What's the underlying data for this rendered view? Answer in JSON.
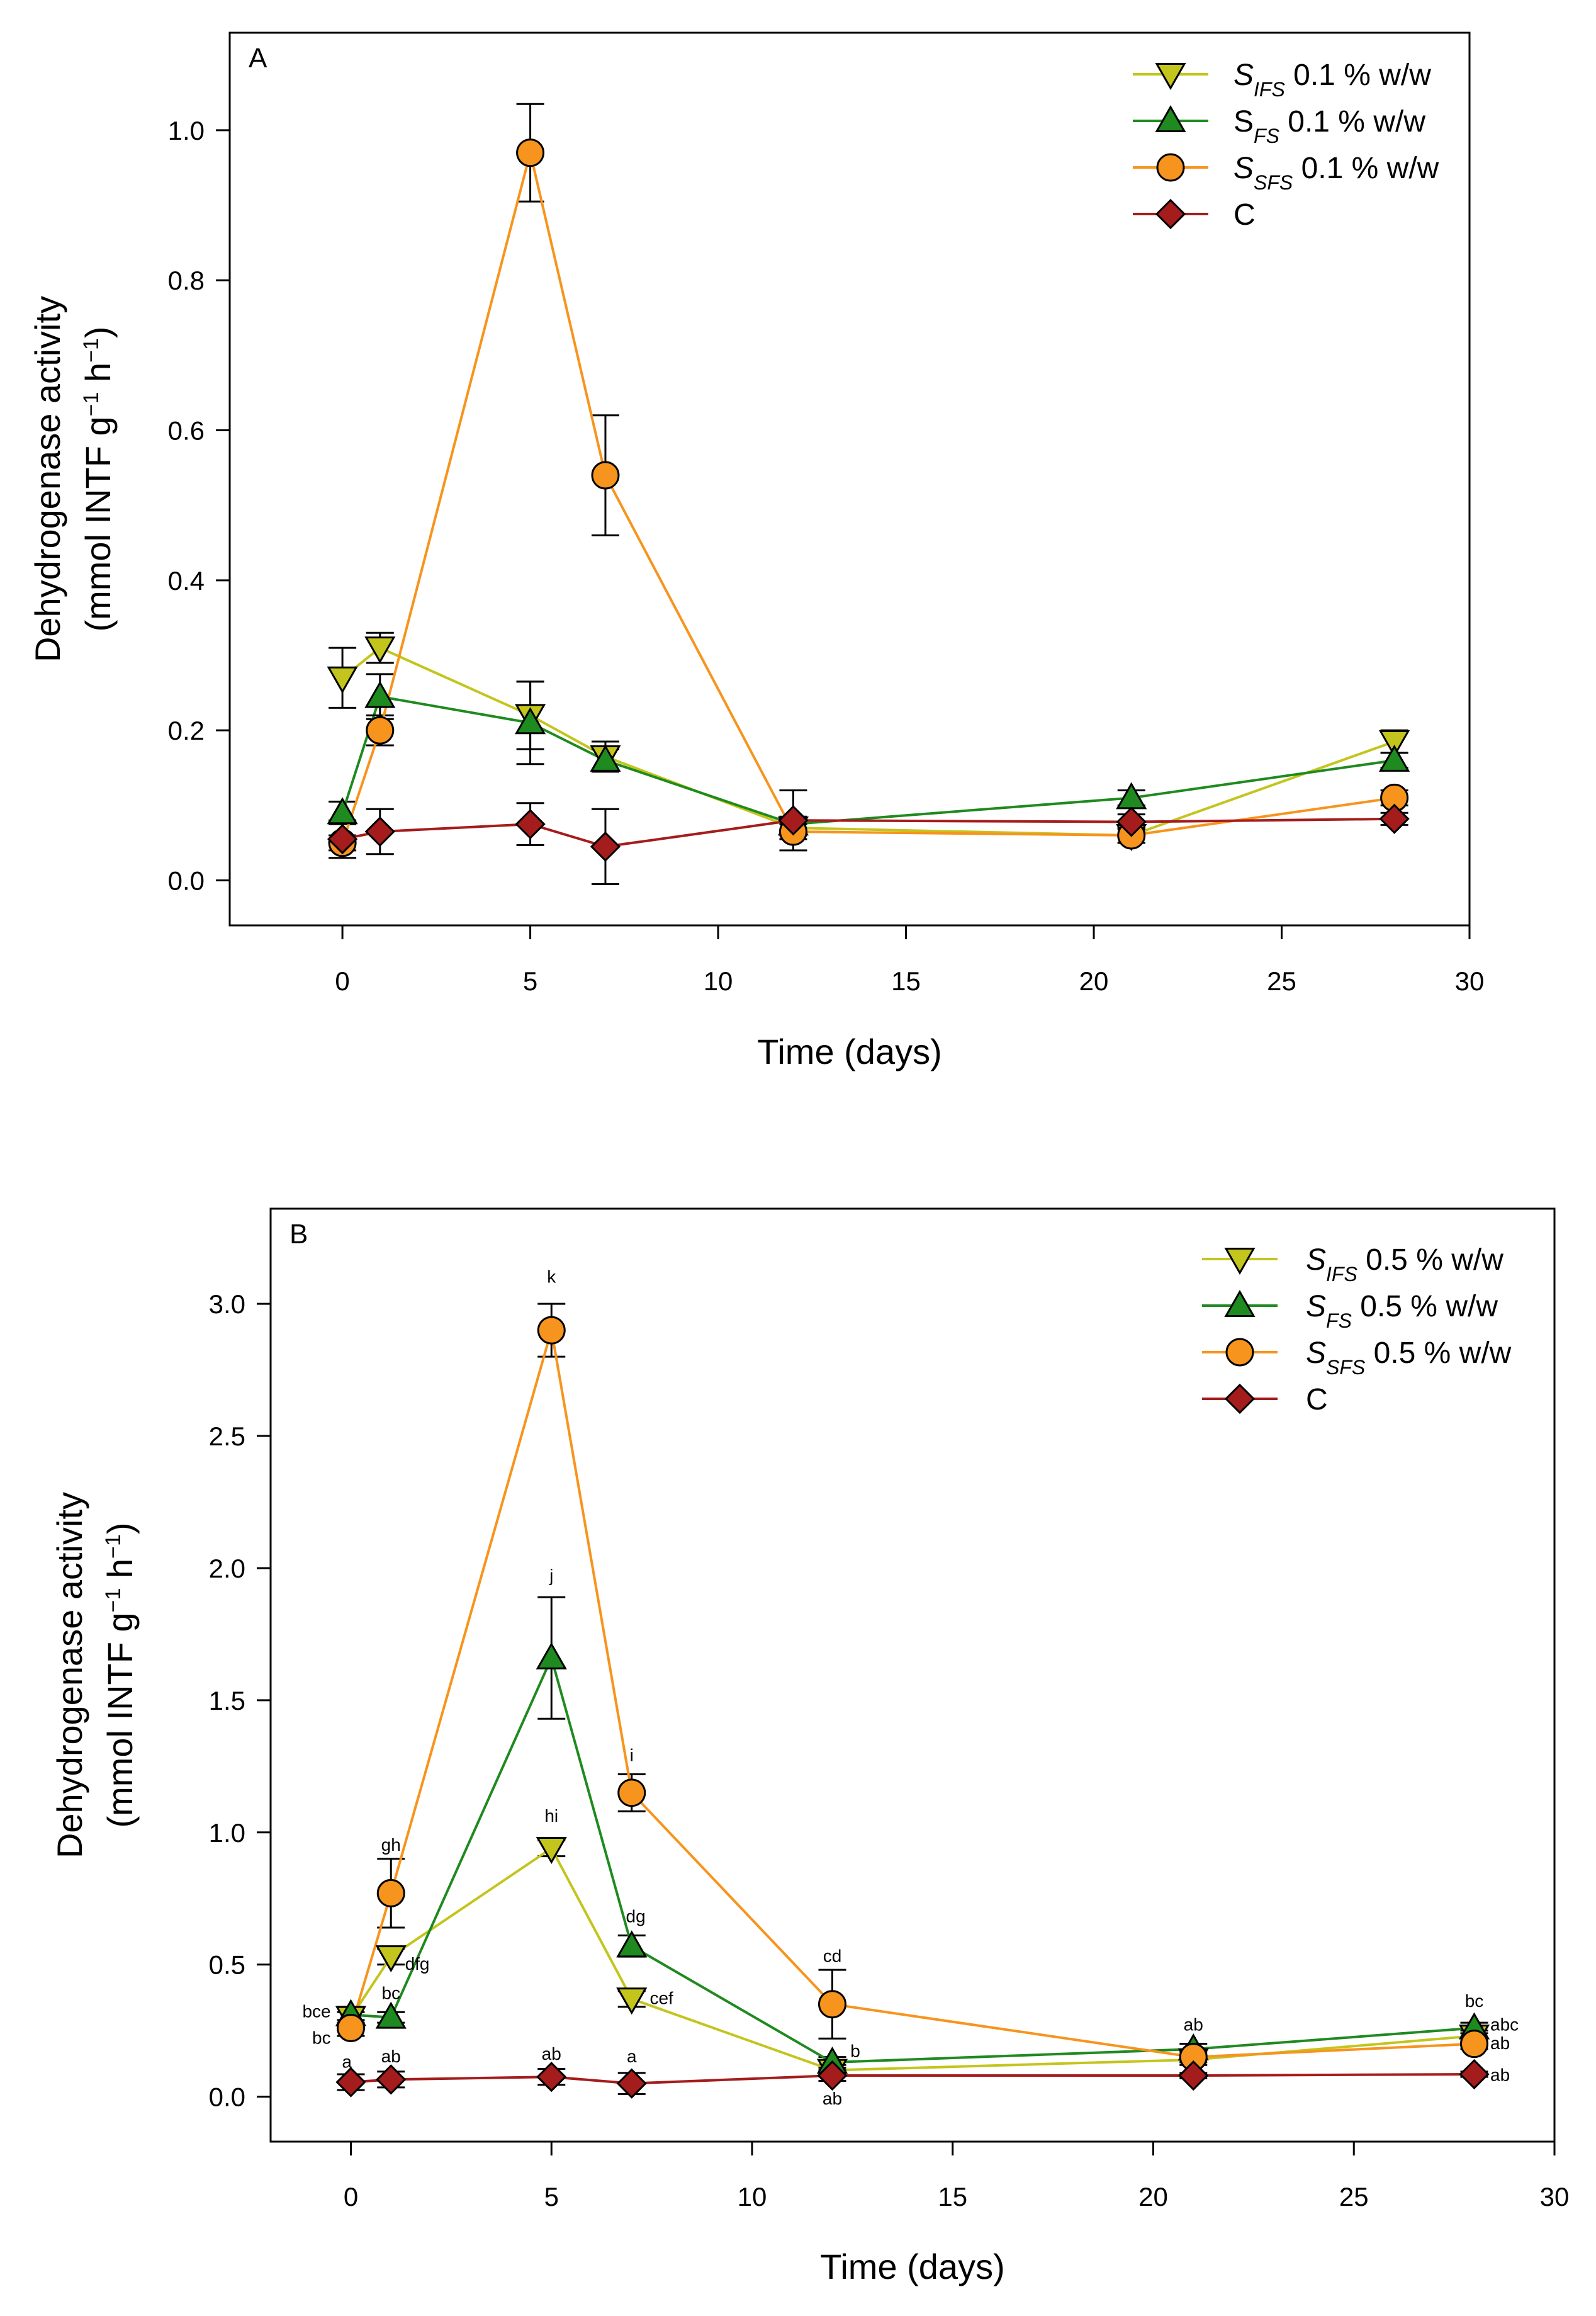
{
  "chart_data": [
    {
      "type": "line",
      "panel_label": "A",
      "xlabel": "Time (days)",
      "ylabel_line1": "Dehydrogenase activity",
      "ylabel_line2_prefix": "(mmol INTF g",
      "ylabel_sup1": "−1",
      "ylabel_mid": " h",
      "ylabel_sup2": "−1",
      "ylabel_suffix": ")",
      "xlim": [
        -3,
        30
      ],
      "ylim": [
        -0.06,
        1.13
      ],
      "xticks": [
        0,
        5,
        10,
        15,
        20,
        25,
        30
      ],
      "xtick_labels": [
        "0",
        "5",
        "10",
        "15",
        "20",
        "25",
        "30"
      ],
      "yticks": [
        0.0,
        0.2,
        0.4,
        0.6,
        0.8,
        1.0
      ],
      "ytick_labels": [
        "0.0",
        "0.2",
        "0.4",
        "0.6",
        "0.8",
        "1.0"
      ],
      "legend_position": "top-right",
      "x": [
        0,
        1,
        5,
        7,
        12,
        21,
        28
      ],
      "series": [
        {
          "id": "sifs",
          "color": "#c3c51c",
          "marker": "triangle-down",
          "legend_main": "S",
          "legend_sub": "IFS",
          "legend_rest": " 0.1 % w/w",
          "main_italic": true,
          "values": [
            0.27,
            0.31,
            0.22,
            0.165,
            0.07,
            0.06,
            0.185
          ],
          "errors": [
            0.04,
            0.02,
            0.045,
            0.02,
            0.01,
            0.01,
            0.015
          ]
        },
        {
          "id": "sfs",
          "color": "#1f8a1f",
          "marker": "triangle-up",
          "legend_main": "S",
          "legend_sub": "FS",
          "legend_rest": " 0.1 % w/w",
          "main_italic": false,
          "values": [
            0.09,
            0.245,
            0.21,
            0.16,
            0.075,
            0.11,
            0.16
          ],
          "errors": [
            0.015,
            0.03,
            0.055,
            0.015,
            0.01,
            0.01,
            0.01
          ]
        },
        {
          "id": "ssfs",
          "color": "#f7941d",
          "marker": "circle",
          "legend_main": "S",
          "legend_sub": "SFS",
          "legend_rest": " 0.1 % w/w",
          "main_italic": true,
          "values": [
            0.05,
            0.2,
            0.97,
            0.54,
            0.065,
            0.06,
            0.11
          ],
          "errors": [
            0.01,
            0.02,
            0.065,
            0.08,
            0.01,
            0.01,
            0.01
          ]
        },
        {
          "id": "c",
          "color": "#a51c1c",
          "marker": "diamond",
          "legend_main": "C",
          "legend_sub": "",
          "legend_rest": "",
          "main_italic": false,
          "values": [
            0.055,
            0.065,
            0.075,
            0.045,
            0.08,
            0.078,
            0.082
          ],
          "errors": [
            0.025,
            0.03,
            0.028,
            0.05,
            0.04,
            0.01,
            0.008
          ]
        }
      ],
      "annotations": []
    },
    {
      "type": "line",
      "panel_label": "B",
      "xlabel": "Time (days)",
      "ylabel_line1": "Dehydrogenase activity",
      "ylabel_line2_prefix": "(mmol INTF g",
      "ylabel_sup1": "−1",
      "ylabel_mid": " h",
      "ylabel_sup2": "−1",
      "ylabel_suffix": ")",
      "xlim": [
        -2,
        30
      ],
      "ylim": [
        -0.17,
        3.36
      ],
      "xticks": [
        0,
        5,
        10,
        15,
        20,
        25,
        30
      ],
      "xtick_labels": [
        "0",
        "5",
        "10",
        "15",
        "20",
        "25",
        "30"
      ],
      "yticks": [
        0.0,
        0.5,
        1.0,
        1.5,
        2.0,
        2.5,
        3.0
      ],
      "ytick_labels": [
        "0.0",
        "0.5",
        "1.0",
        "1.5",
        "2.0",
        "2.5",
        "3.0"
      ],
      "legend_position": "top-right",
      "x": [
        0,
        1,
        5,
        7,
        12,
        21,
        28
      ],
      "series": [
        {
          "id": "sifs",
          "color": "#c3c51c",
          "marker": "triangle-down",
          "legend_main": "S",
          "legend_sub": "IFS",
          "legend_rest": " 0.5 % w/w",
          "main_italic": true,
          "values": [
            0.3,
            0.53,
            0.94,
            0.37,
            0.1,
            0.14,
            0.23
          ],
          "errors": [
            0.02,
            0.03,
            0.03,
            0.03,
            0.02,
            0.02,
            0.02
          ]
        },
        {
          "id": "sfs",
          "color": "#1f8a1f",
          "marker": "triangle-up",
          "legend_main": "S",
          "legend_sub": "FS",
          "legend_rest": " 0.5 % w/w",
          "main_italic": true,
          "values": [
            0.31,
            0.3,
            1.66,
            0.57,
            0.13,
            0.18,
            0.26
          ],
          "errors": [
            0.03,
            0.02,
            0.23,
            0.04,
            0.02,
            0.02,
            0.02
          ]
        },
        {
          "id": "ssfs",
          "color": "#f7941d",
          "marker": "circle",
          "legend_main": "S",
          "legend_sub": "SFS",
          "legend_rest": " 0.5 % w/w",
          "main_italic": true,
          "values": [
            0.26,
            0.77,
            2.9,
            1.15,
            0.35,
            0.15,
            0.2
          ],
          "errors": [
            0.03,
            0.13,
            0.1,
            0.07,
            0.13,
            0.02,
            0.02
          ]
        },
        {
          "id": "c",
          "color": "#a51c1c",
          "marker": "diamond",
          "legend_main": "C",
          "legend_sub": "",
          "legend_rest": "",
          "main_italic": false,
          "values": [
            0.055,
            0.065,
            0.075,
            0.05,
            0.08,
            0.08,
            0.085
          ],
          "errors": [
            0.03,
            0.03,
            0.03,
            0.04,
            0.02,
            0.01,
            0.01
          ]
        }
      ],
      "annotations": [
        {
          "text": "k",
          "x": 5,
          "y": 3.08,
          "anchor": "middle"
        },
        {
          "text": "j",
          "x": 5,
          "y": 1.95,
          "anchor": "middle"
        },
        {
          "text": "i",
          "x": 7,
          "y": 1.27,
          "anchor": "middle"
        },
        {
          "text": "hi",
          "x": 5,
          "y": 1.04,
          "anchor": "middle"
        },
        {
          "text": "gh",
          "x": 1,
          "y": 0.93,
          "anchor": "middle"
        },
        {
          "text": "dfg",
          "x": 1.35,
          "y": 0.48,
          "anchor": "start"
        },
        {
          "text": "dg",
          "x": 7.1,
          "y": 0.66,
          "anchor": "middle"
        },
        {
          "text": "cef",
          "x": 7.45,
          "y": 0.35,
          "anchor": "start"
        },
        {
          "text": "cd",
          "x": 12,
          "y": 0.51,
          "anchor": "middle"
        },
        {
          "text": "bce",
          "x": -0.5,
          "y": 0.3,
          "anchor": "end"
        },
        {
          "text": "bc",
          "x": -0.5,
          "y": 0.2,
          "anchor": "end"
        },
        {
          "text": "bc",
          "x": 1,
          "y": 0.37,
          "anchor": "middle"
        },
        {
          "text": "a",
          "x": -0.1,
          "y": 0.11,
          "anchor": "middle"
        },
        {
          "text": "ab",
          "x": 1,
          "y": 0.13,
          "anchor": "middle"
        },
        {
          "text": "ab",
          "x": 5,
          "y": 0.14,
          "anchor": "middle"
        },
        {
          "text": "a",
          "x": 7,
          "y": 0.13,
          "anchor": "middle"
        },
        {
          "text": "b",
          "x": 12.45,
          "y": 0.15,
          "anchor": "start"
        },
        {
          "text": "ab",
          "x": 12,
          "y": -0.03,
          "anchor": "middle"
        },
        {
          "text": "ab",
          "x": 21,
          "y": 0.25,
          "anchor": "middle"
        },
        {
          "text": "bc",
          "x": 28,
          "y": 0.34,
          "anchor": "middle"
        },
        {
          "text": "abc",
          "x": 28.4,
          "y": 0.25,
          "anchor": "start"
        },
        {
          "text": "ab",
          "x": 28.4,
          "y": 0.18,
          "anchor": "start"
        },
        {
          "text": "ab",
          "x": 28.4,
          "y": 0.06,
          "anchor": "start"
        }
      ]
    }
  ]
}
